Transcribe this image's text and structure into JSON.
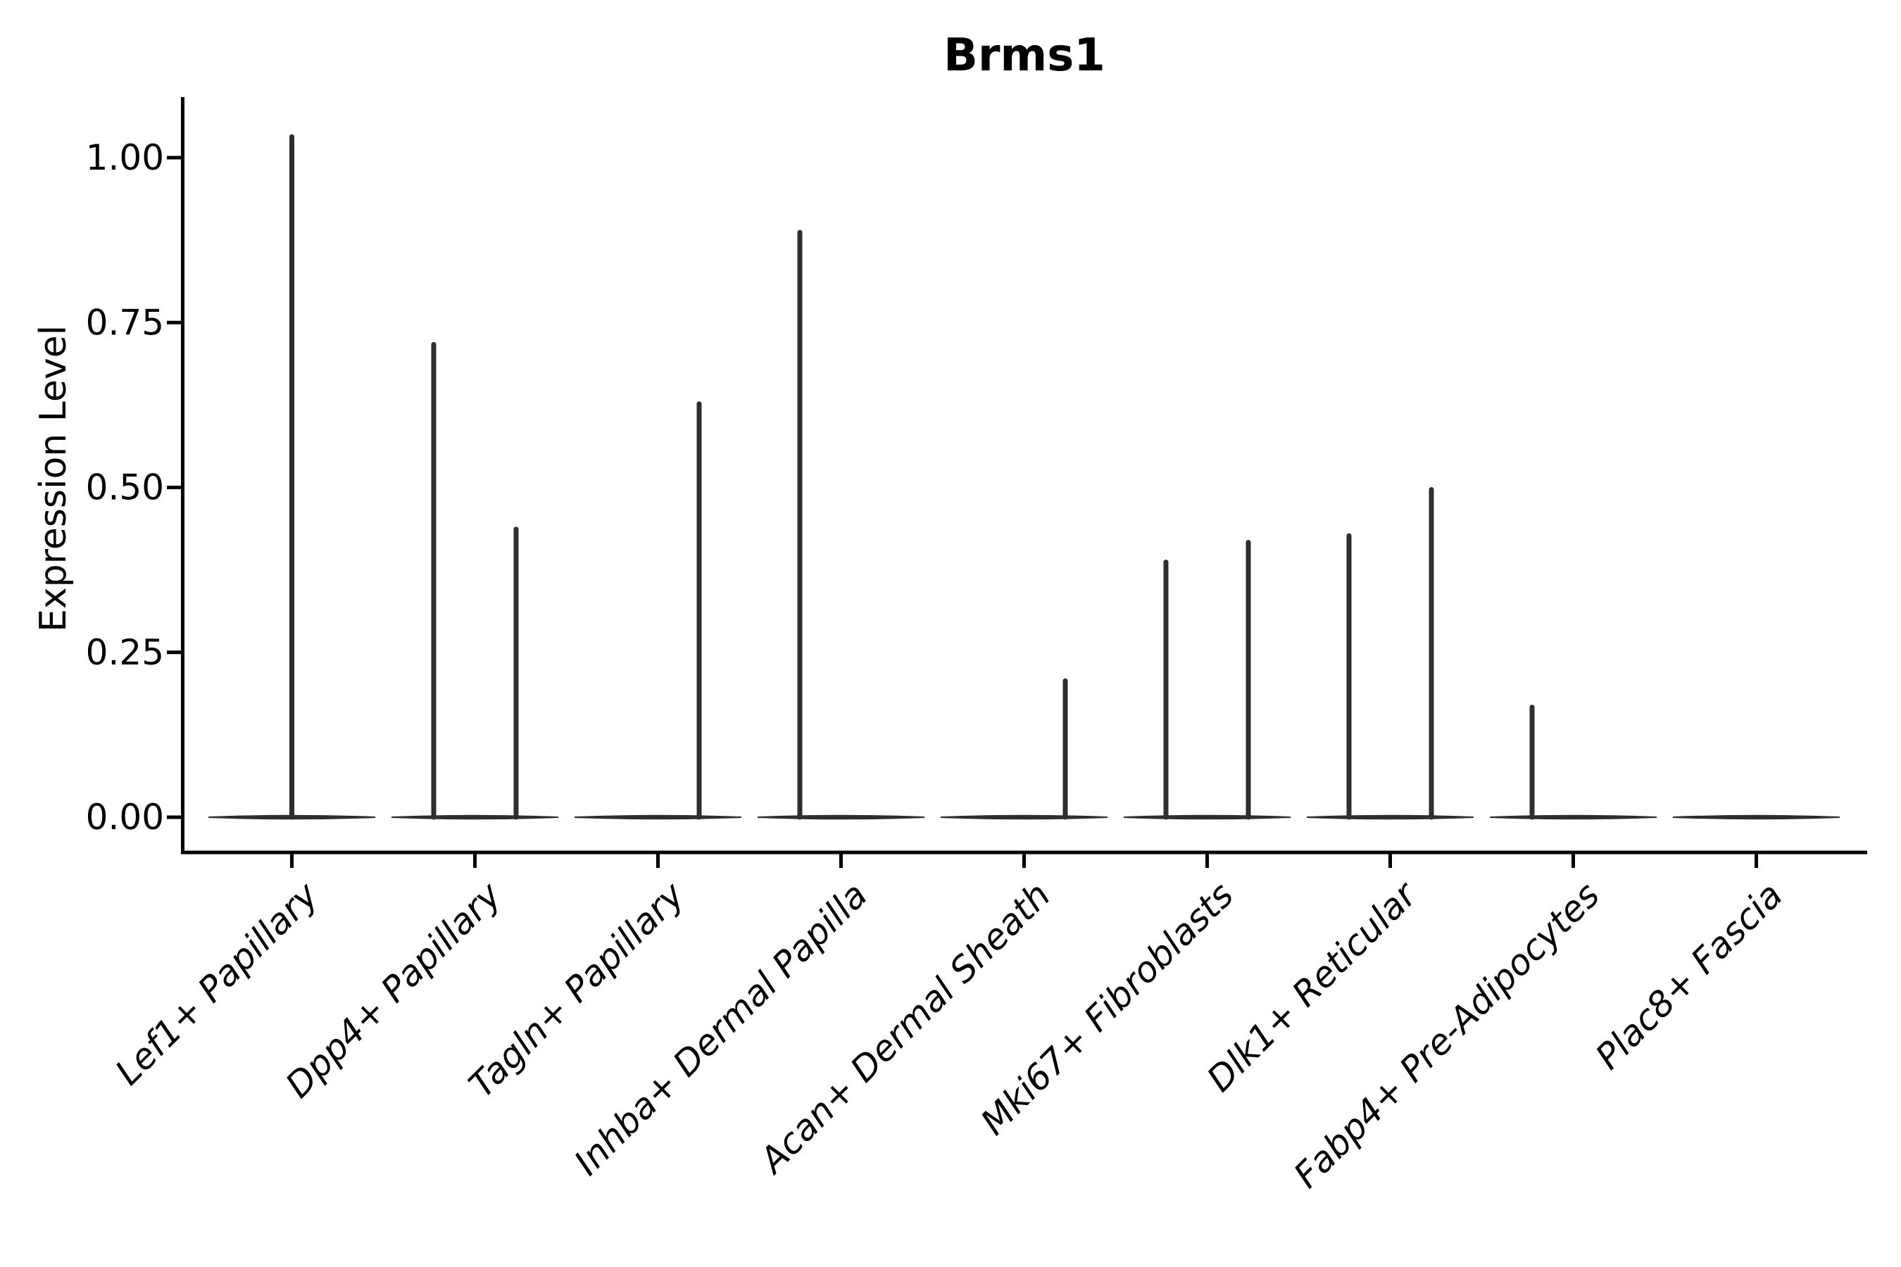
{
  "chart_data": {
    "type": "violin",
    "title": "Brms1",
    "ylabel": "Expression Level",
    "xlabel": "",
    "legend": "none",
    "grid": false,
    "ylim": [
      -0.053,
      1.094
    ],
    "ytick_labels": [
      "0.00",
      "0.25",
      "0.50",
      "0.75",
      "1.00"
    ],
    "ytick_values": [
      0,
      0.25,
      0.5,
      0.75,
      1.0
    ],
    "description": "Violin plot of gene expression; each cell type shows a flat zero-density body with thin spikes rising to the maximum expression of sub-violins",
    "categories": [
      {
        "label": "Lef1+ Papillary",
        "spikes": [
          {
            "offset": "center",
            "value": 1.035
          }
        ]
      },
      {
        "label": "Dpp4+ Papillary",
        "spikes": [
          {
            "offset": "left",
            "value": 0.72
          },
          {
            "offset": "right",
            "value": 0.44
          }
        ]
      },
      {
        "label": "Tagln+ Papillary",
        "spikes": [
          {
            "offset": "right",
            "value": 0.63
          }
        ]
      },
      {
        "label": "Inhba+ Dermal Papilla",
        "spikes": [
          {
            "offset": "left",
            "value": 0.89
          }
        ]
      },
      {
        "label": "Acan+ Dermal Sheath",
        "spikes": [
          {
            "offset": "right",
            "value": 0.21
          }
        ]
      },
      {
        "label": "Mki67+ Fibroblasts",
        "spikes": [
          {
            "offset": "left",
            "value": 0.39
          },
          {
            "offset": "right",
            "value": 0.42
          }
        ]
      },
      {
        "label": "Dlk1+ Reticular",
        "spikes": [
          {
            "offset": "left",
            "value": 0.43
          },
          {
            "offset": "right",
            "value": 0.5
          }
        ]
      },
      {
        "label": "Fabp4+ Pre-Adipocytes",
        "spikes": [
          {
            "offset": "left",
            "value": 0.17
          }
        ]
      },
      {
        "label": "Plac8+ Fascia",
        "spikes": []
      }
    ]
  },
  "colors": {
    "background": "#ffffff",
    "text": "#000000",
    "axis": "#000000",
    "violin_stroke": "#2e2e2e"
  }
}
